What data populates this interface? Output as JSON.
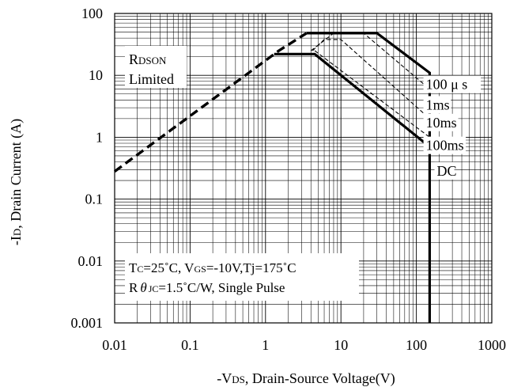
{
  "chart_data": {
    "type": "line",
    "xlabel": "-V",
    "xlabel_sub": "DS",
    "xlabel_rest": ", Drain-Source Voltage(V)",
    "ylabel": "-I",
    "ylabel_sub": "D",
    "ylabel_rest": ", Drain Current (A)",
    "x_scale": "log",
    "y_scale": "log",
    "xlim": [
      0.01,
      1000
    ],
    "ylim": [
      0.001,
      100
    ],
    "grid": true,
    "xticks": [
      {
        "value": 0.01,
        "label": "0.01"
      },
      {
        "value": 0.1,
        "label": "0.1"
      },
      {
        "value": 1,
        "label": "1"
      },
      {
        "value": 10,
        "label": "10"
      },
      {
        "value": 100,
        "label": "100"
      },
      {
        "value": 1000,
        "label": "1000"
      }
    ],
    "yticks": [
      {
        "value": 0.001,
        "label": "0.001"
      },
      {
        "value": 0.01,
        "label": "0.01"
      },
      {
        "value": 0.1,
        "label": "0.1"
      },
      {
        "value": 1,
        "label": "1"
      },
      {
        "value": 10,
        "label": "10"
      },
      {
        "value": 100,
        "label": "100"
      }
    ],
    "series": [
      {
        "name": "RDSON Limited",
        "style": "dashed-thick",
        "points": [
          [
            0.01,
            0.28
          ],
          [
            1.5,
            25
          ],
          [
            3.5,
            48
          ]
        ]
      },
      {
        "name": "100μs",
        "style": "solid-thick",
        "points": [
          [
            3.5,
            48
          ],
          [
            30,
            48
          ],
          [
            150,
            11
          ],
          [
            150,
            0.001
          ]
        ]
      },
      {
        "name": "1ms",
        "style": "dashed-thin",
        "points": [
          [
            4,
            25
          ],
          [
            8,
            48
          ],
          [
            20,
            48
          ],
          [
            150,
            6
          ]
        ]
      },
      {
        "name": "10ms",
        "style": "dashed-thin",
        "points": [
          [
            4.2,
            25
          ],
          [
            6,
            38
          ],
          [
            10,
            38
          ],
          [
            150,
            2
          ]
        ]
      },
      {
        "name": "100ms",
        "style": "dashed-thin",
        "points": [
          [
            4.5,
            25
          ],
          [
            150,
            1
          ]
        ]
      },
      {
        "name": "DC",
        "style": "solid-thick",
        "points": [
          [
            1.3,
            22
          ],
          [
            4.5,
            22
          ],
          [
            150,
            0.7
          ]
        ]
      }
    ],
    "legend_labels": [
      {
        "series": "100μs",
        "label": "100 μ s",
        "x": 100,
        "y": 6.0
      },
      {
        "series": "1ms",
        "label": "1ms",
        "x": 100,
        "y": 2.8
      },
      {
        "series": "10ms",
        "label": "10ms",
        "x": 100,
        "y": 1.45
      },
      {
        "series": "100ms",
        "label": "100ms",
        "x": 100,
        "y": 0.62
      },
      {
        "series": "DC",
        "label": "DC",
        "x": 140,
        "y": 0.24
      }
    ],
    "annotations": {
      "rdson_main": "R",
      "rdson_sub": "DSON",
      "limited": "Limited",
      "cond1_a": "T",
      "cond1_a_sub": "C",
      "cond1_b": "=25˚C, V",
      "cond1_b_sub": "GS",
      "cond1_c": "=-10V,Tj=175˚C",
      "cond2_a": "R",
      "cond2_theta": "θ",
      "cond2_sub": "JC",
      "cond2_b": "=1.5˚C/W, Single Pulse"
    }
  }
}
